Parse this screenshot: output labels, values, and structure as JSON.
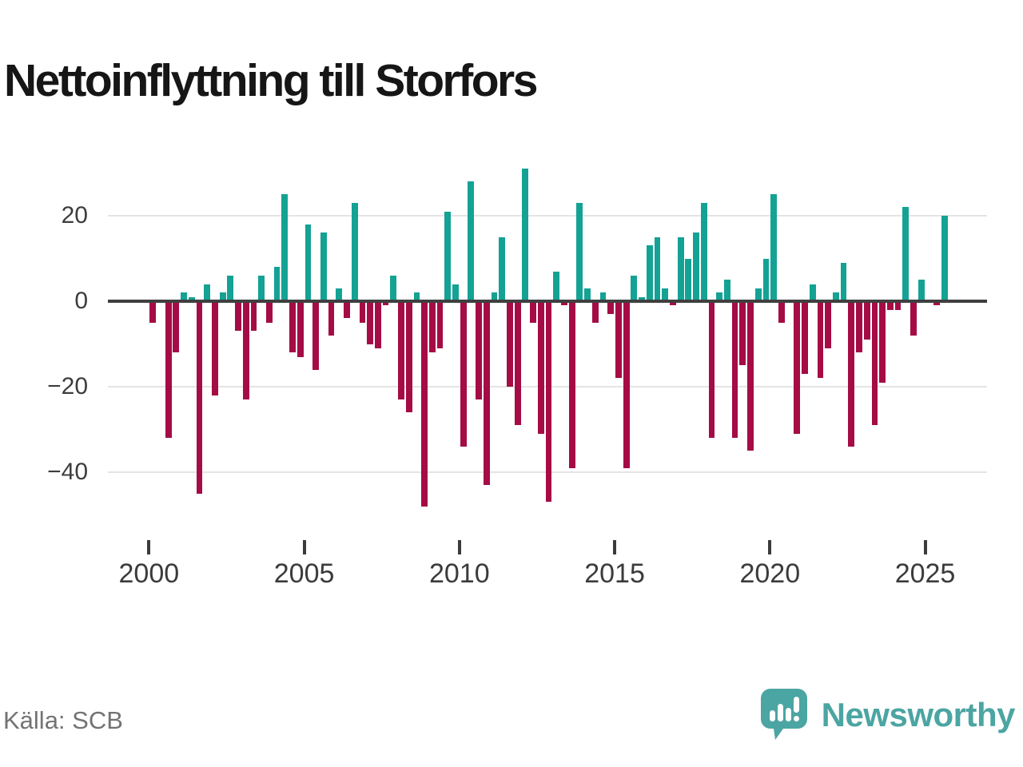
{
  "title": "Nettoinflyttning till Storfors",
  "source": "Källa: SCB",
  "logo": {
    "text": "Newsworthy"
  },
  "colors": {
    "positive": "#14a294",
    "negative": "#a50b45",
    "grid": "#e4e4e4",
    "axis": "#3f3f3f",
    "tick_label": "#3d3d3d",
    "title": "#161616",
    "source": "#737373",
    "logo": "#4ba5a2"
  },
  "chart_data": {
    "type": "bar",
    "title": "Nettoinflyttning till Storfors",
    "frequency": "quarterly",
    "start_period": "2000-Q1",
    "end_period": "2025-Q3",
    "values": [
      -5,
      0,
      -32,
      -12,
      2,
      1,
      -45,
      4,
      -22,
      2,
      6,
      -7,
      -23,
      -7,
      6,
      -5,
      8,
      25,
      -12,
      -13,
      18,
      -16,
      16,
      -8,
      3,
      -4,
      23,
      -5,
      -10,
      -11,
      -1,
      6,
      -23,
      -26,
      2,
      -48,
      -12,
      -11,
      21,
      4,
      -34,
      28,
      -23,
      -43,
      2,
      15,
      -20,
      -29,
      31,
      -5,
      -31,
      -47,
      7,
      -1,
      -39,
      23,
      3,
      -5,
      2,
      -3,
      -18,
      -39,
      6,
      1,
      13,
      15,
      3,
      -1,
      15,
      10,
      16,
      23,
      -32,
      2,
      5,
      -32,
      -15,
      -35,
      3,
      10,
      25,
      -5,
      0,
      -31,
      -17,
      4,
      -18,
      -11,
      2,
      9,
      -34,
      -12,
      -9,
      -29,
      -19,
      -2,
      -2,
      22,
      -8,
      5,
      0,
      -1,
      20
    ],
    "x_ticks": [
      {
        "label": "2000",
        "year": 2000
      },
      {
        "label": "2005",
        "year": 2005
      },
      {
        "label": "2010",
        "year": 2010
      },
      {
        "label": "2015",
        "year": 2015
      },
      {
        "label": "2020",
        "year": 2020
      },
      {
        "label": "2025",
        "year": 2025
      }
    ],
    "y_ticks": [
      {
        "label": "20",
        "value": 20
      },
      {
        "label": "0",
        "value": 0
      },
      {
        "label": "−20",
        "value": -20
      },
      {
        "label": "−40",
        "value": -40
      }
    ],
    "ylim": [
      -50,
      32
    ],
    "grid": "horizontal",
    "legend": "none"
  }
}
